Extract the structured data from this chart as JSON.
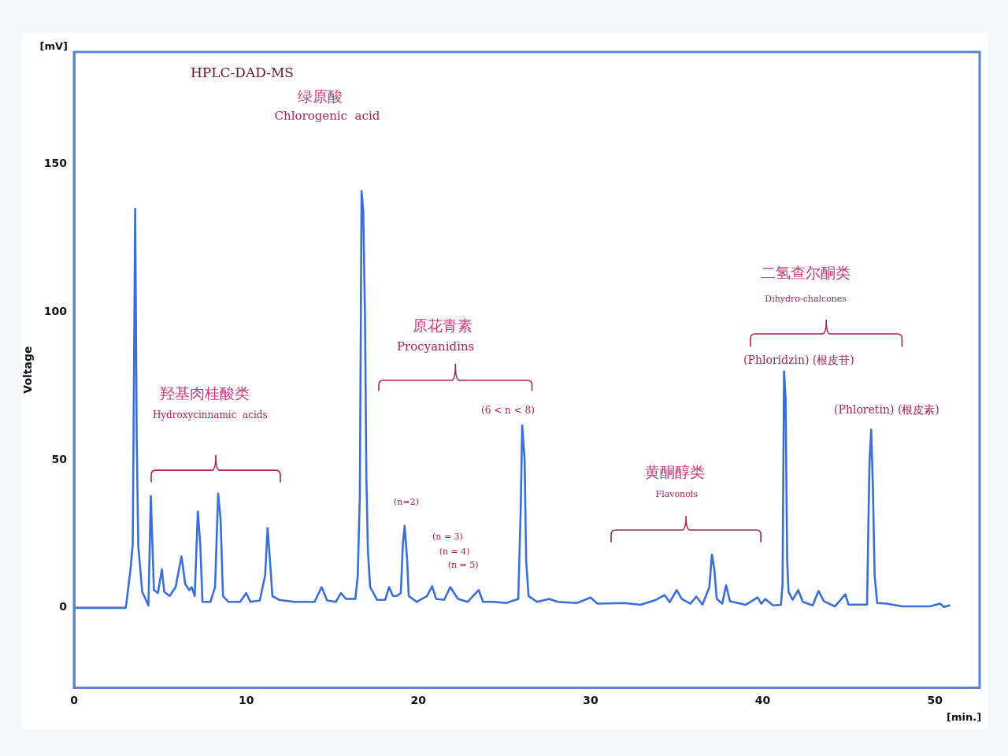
{
  "chart_data": {
    "type": "line",
    "title": "HPLC-DAD-MS",
    "ylabel": "Voltage",
    "x": [
      0,
      3.0,
      3.05,
      3.28,
      3.41,
      3.55,
      3.64,
      3.73,
      3.96,
      4.32,
      4.46,
      4.55,
      4.64,
      4.87,
      5.1,
      5.24,
      5.55,
      5.9,
      6.24,
      6.46,
      6.69,
      6.83,
      7.01,
      7.19,
      7.33,
      7.46,
      7.92,
      8.19,
      8.37,
      8.51,
      8.65,
      8.97,
      9.65,
      10.0,
      10.24,
      10.79,
      11.1,
      11.24,
      11.38,
      11.52,
      11.9,
      12.8,
      13.97,
      14.38,
      14.7,
      15.2,
      15.5,
      15.8,
      16.34,
      16.48,
      16.6,
      16.7,
      16.8,
      16.9,
      16.98,
      17.07,
      17.2,
      17.6,
      18.07,
      18.3,
      18.52,
      18.75,
      18.98,
      19.1,
      19.2,
      19.35,
      19.44,
      19.9,
      20.5,
      20.8,
      21.03,
      21.5,
      21.85,
      22.3,
      22.85,
      23.5,
      23.76,
      24.4,
      25.1,
      25.8,
      25.94,
      26.03,
      26.17,
      26.26,
      26.4,
      26.9,
      27.6,
      28.1,
      29.2,
      30.0,
      30.4,
      31.95,
      32.9,
      33.8,
      34.3,
      34.6,
      35.0,
      35.3,
      35.8,
      36.14,
      36.5,
      36.9,
      37.05,
      37.19,
      37.33,
      37.65,
      37.87,
      38.1,
      39.0,
      39.7,
      39.92,
      40.15,
      40.6,
      41.06,
      41.15,
      41.24,
      41.33,
      41.42,
      41.5,
      41.74,
      42.06,
      42.33,
      42.9,
      43.24,
      43.56,
      44.2,
      44.8,
      44.98,
      46.06,
      46.2,
      46.3,
      46.4,
      46.5,
      46.65,
      47.2,
      48.1,
      49.7,
      50.3,
      50.53,
      50.84
    ],
    "series": [
      {
        "color": "#3a6fd8",
        "values": [
          0,
          0,
          2,
          13,
          21.7,
          135,
          58,
          21,
          5.4,
          0.8,
          37.8,
          21.7,
          6,
          5,
          13,
          5.4,
          4,
          7,
          17.4,
          8,
          6,
          7,
          4,
          32.6,
          21.7,
          2,
          2,
          7,
          38.6,
          30,
          4,
          2,
          2,
          5,
          2,
          2.5,
          11,
          27,
          16,
          4,
          2.7,
          2,
          2,
          7,
          2.5,
          2,
          5,
          3,
          3,
          11,
          38,
          141,
          134,
          98,
          43.5,
          19,
          7,
          2.7,
          2.7,
          7,
          4,
          4,
          5,
          21.7,
          27.7,
          16,
          4,
          2,
          4,
          7.3,
          3,
          2.7,
          7,
          3,
          2,
          6,
          2,
          2,
          1.6,
          3,
          32.6,
          61.7,
          50,
          16,
          4,
          2,
          3,
          2,
          1.6,
          3.5,
          1.4,
          1.6,
          1,
          2.7,
          4.3,
          1.9,
          6,
          3,
          1.4,
          3.8,
          1.1,
          7,
          18,
          13,
          3,
          1.4,
          7.6,
          2.2,
          1,
          3.5,
          1.4,
          3,
          0.8,
          1,
          8,
          80,
          70.7,
          16,
          5.4,
          2.7,
          6,
          2,
          0.8,
          5.7,
          2.2,
          0.5,
          4.6,
          1.1,
          1.1,
          49,
          60.3,
          40.8,
          11,
          1.6,
          1.4,
          0.5,
          0.5,
          1.4,
          0.3,
          0.8
        ]
      }
    ],
    "xlim": [
      0,
      52.6
    ],
    "ylim": [
      -27,
      188
    ],
    "xticks": [
      0,
      10,
      20,
      30,
      40,
      50
    ],
    "yticks": [
      0,
      50,
      100,
      150
    ],
    "grid": false,
    "legend": false,
    "marker": "none",
    "line_style": "solid",
    "annotations": [
      "[mV]",
      "[min.]",
      "绿原酸",
      "Chlorogenic  acid",
      "羟基肉桂酸类",
      "Hydroxycinnamic  acids",
      "原花青素",
      "Procyanidins",
      "(6 < n < 8)",
      "(n=2)",
      "(n = 3)",
      "(n = 4)",
      "(n = 5)",
      "黄酮醇类",
      "Flavonols",
      "二氢查尔酮类",
      "Dihydro-chalcones",
      "(Phloridzin) (根皮苷)",
      "(Phloretin) (根皮素)"
    ]
  }
}
